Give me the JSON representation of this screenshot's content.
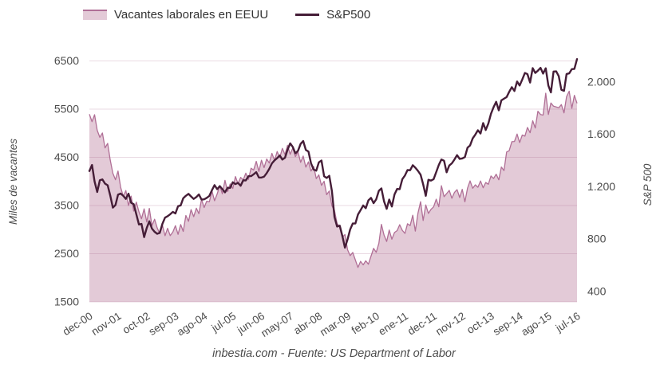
{
  "legend": [
    {
      "label": "Vacantes laborales en EEUU",
      "type": "area"
    },
    {
      "label": "S&P500",
      "type": "line"
    }
  ],
  "left_axis": {
    "title": "Miles de vacantes",
    "tick_values": [
      6500,
      5500,
      4500,
      3500,
      2500,
      1500
    ],
    "min": 1500,
    "max": 6500
  },
  "right_axis": {
    "title": "S&P 500",
    "ticks": [
      "2.000",
      "1.600",
      "1.200",
      "800",
      "400"
    ],
    "tick_values": [
      2000,
      1600,
      1200,
      800,
      400
    ]
  },
  "x_axis": {
    "tick_labels": [
      "dec-00",
      "nov-01",
      "oct-02",
      "sep-03",
      "ago-04",
      "jul-05",
      "jun-06",
      "may-07",
      "abr-08",
      "mar-09",
      "feb-10",
      "ene-11",
      "dec-11",
      "nov-12",
      "oct-13",
      "sep-14",
      "ago-15",
      "jul-16"
    ],
    "tick_indices": [
      0,
      11,
      22,
      33,
      44,
      55,
      66,
      77,
      88,
      99,
      110,
      121,
      132,
      143,
      154,
      165,
      176,
      187
    ]
  },
  "footer": "inbestia.com - Fuente: US Department of Labor",
  "colors": {
    "area_fill": "#e3cad7",
    "area_stroke": "#b06f96",
    "line": "#451d37",
    "gridline": "rgba(166,100,140,0.24)",
    "tick_text": "#4c4c4c",
    "legend_text": "#333333",
    "footer_text": "#4c4c4c"
  },
  "chart_data": {
    "type": "area+line",
    "title": "",
    "xlabel": "",
    "ylabel_left": "Miles de vacantes",
    "ylabel_right": "S&P 500",
    "ylim_left": [
      1500,
      6500
    ],
    "ylim_right": [
      400,
      2000
    ],
    "grid": "horizontal",
    "legend_position": "top",
    "frequency": "monthly",
    "categories": [
      "dec-00",
      "ene-01",
      "feb-01",
      "mar-01",
      "abr-01",
      "may-01",
      "jun-01",
      "jul-01",
      "ago-01",
      "sep-01",
      "oct-01",
      "nov-01",
      "dec-01",
      "ene-02",
      "feb-02",
      "mar-02",
      "abr-02",
      "may-02",
      "jun-02",
      "jul-02",
      "ago-02",
      "sep-02",
      "oct-02",
      "nov-02",
      "dec-02",
      "ene-03",
      "feb-03",
      "mar-03",
      "abr-03",
      "may-03",
      "jun-03",
      "jul-03",
      "ago-03",
      "sep-03",
      "oct-03",
      "nov-03",
      "dec-03",
      "ene-04",
      "feb-04",
      "mar-04",
      "abr-04",
      "may-04",
      "jun-04",
      "jul-04",
      "ago-04",
      "sep-04",
      "oct-04",
      "nov-04",
      "dec-04",
      "ene-05",
      "feb-05",
      "mar-05",
      "abr-05",
      "may-05",
      "jun-05",
      "jul-05",
      "ago-05",
      "sep-05",
      "oct-05",
      "nov-05",
      "dec-05",
      "ene-06",
      "feb-06",
      "mar-06",
      "abr-06",
      "may-06",
      "jun-06",
      "jul-06",
      "ago-06",
      "sep-06",
      "oct-06",
      "nov-06",
      "dec-06",
      "ene-07",
      "feb-07",
      "mar-07",
      "abr-07",
      "may-07",
      "jun-07",
      "jul-07",
      "ago-07",
      "sep-07",
      "oct-07",
      "nov-07",
      "dec-07",
      "ene-08",
      "feb-08",
      "mar-08",
      "abr-08",
      "may-08",
      "jun-08",
      "jul-08",
      "ago-08",
      "sep-08",
      "oct-08",
      "nov-08",
      "dec-08",
      "ene-09",
      "feb-09",
      "mar-09",
      "abr-09",
      "may-09",
      "jun-09",
      "jul-09",
      "ago-09",
      "sep-09",
      "oct-09",
      "nov-09",
      "dec-09",
      "ene-10",
      "feb-10",
      "mar-10",
      "abr-10",
      "may-10",
      "jun-10",
      "jul-10",
      "ago-10",
      "sep-10",
      "oct-10",
      "nov-10",
      "dec-10",
      "ene-11",
      "feb-11",
      "mar-11",
      "abr-11",
      "may-11",
      "jun-11",
      "jul-11",
      "ago-11",
      "sep-11",
      "oct-11",
      "nov-11",
      "dec-11",
      "ene-12",
      "feb-12",
      "mar-12",
      "abr-12",
      "may-12",
      "jun-12",
      "jul-12",
      "ago-12",
      "sep-12",
      "oct-12",
      "nov-12",
      "dec-12",
      "ene-13",
      "feb-13",
      "mar-13",
      "abr-13",
      "may-13",
      "jun-13",
      "jul-13",
      "ago-13",
      "sep-13",
      "oct-13",
      "nov-13",
      "dec-13",
      "ene-14",
      "feb-14",
      "mar-14",
      "abr-14",
      "may-14",
      "jun-14",
      "jul-14",
      "ago-14",
      "sep-14",
      "oct-14",
      "nov-14",
      "dec-14",
      "ene-15",
      "feb-15",
      "mar-15",
      "abr-15",
      "may-15",
      "jun-15",
      "jul-15",
      "ago-15",
      "sep-15",
      "oct-15",
      "nov-15",
      "dec-15",
      "ene-16",
      "feb-16",
      "mar-16",
      "abr-16",
      "may-16",
      "jun-16",
      "jul-16"
    ],
    "series": [
      {
        "name": "Vacantes laborales en EEUU",
        "axis": "left",
        "style": "area",
        "values": [
          5395,
          5240,
          5385,
          5060,
          4915,
          5005,
          4695,
          4790,
          4445,
          4170,
          4035,
          4215,
          3875,
          3690,
          3810,
          3500,
          3695,
          3385,
          3570,
          3370,
          3225,
          3430,
          3160,
          3440,
          3080,
          3215,
          3034,
          2917,
          3091,
          2874,
          3028,
          2876,
          2952,
          3081,
          2902,
          3105,
          2963,
          3294,
          3172,
          3415,
          3268,
          3444,
          3331,
          3629,
          3459,
          3589,
          3576,
          3800,
          3599,
          3739,
          3914,
          3743,
          4022,
          3789,
          3948,
          3854,
          4101,
          3952,
          4084,
          4033,
          4171,
          4042,
          4274,
          4236,
          4416,
          4208,
          4441,
          4286,
          4465,
          4381,
          4582,
          4438,
          4621,
          4493,
          4685,
          4556,
          4749,
          4563,
          4695,
          4515,
          4612,
          4396,
          4527,
          4296,
          4405,
          4215,
          4311,
          4058,
          4137,
          3918,
          4003,
          3725,
          3801,
          3493,
          3399,
          3123,
          3050,
          2841,
          2898,
          2583,
          2461,
          2526,
          2367,
          2215,
          2341,
          2268,
          2353,
          2281,
          2451,
          2611,
          2529,
          2713,
          3108,
          2886,
          2755,
          2991,
          2801,
          2939,
          2979,
          3102,
          2984,
          2921,
          3122,
          3083,
          3299,
          2970,
          3342,
          3579,
          3189,
          3511,
          3336,
          3419,
          3472,
          3631,
          3474,
          3911,
          3684,
          3747,
          3814,
          3650,
          3771,
          3829,
          3666,
          3836,
          3576,
          3861,
          4011,
          3858,
          3930,
          3878,
          4009,
          3868,
          3977,
          3941,
          4114,
          4061,
          4149,
          4034,
          4299,
          4225,
          4611,
          4637,
          4824,
          4829,
          4983,
          4805,
          4962,
          4939,
          5120,
          5011,
          5258,
          5109,
          5457,
          5390,
          5376,
          5830,
          5390,
          5628,
          5561,
          5545,
          5528,
          5594,
          5422,
          5760,
          5872,
          5517,
          5786,
          5621
        ]
      },
      {
        "name": "S&P500",
        "axis": "right",
        "style": "line",
        "values": [
          1320,
          1366,
          1240,
          1160,
          1249,
          1256,
          1224,
          1211,
          1134,
          1041,
          1060,
          1139,
          1148,
          1130,
          1107,
          1147,
          1077,
          1067,
          990,
          912,
          916,
          815,
          886,
          936,
          880,
          856,
          841,
          848,
          917,
          964,
          975,
          990,
          1008,
          996,
          1051,
          1058,
          1112,
          1131,
          1145,
          1126,
          1107,
          1121,
          1141,
          1102,
          1104,
          1115,
          1130,
          1174,
          1212,
          1181,
          1204,
          1181,
          1157,
          1192,
          1191,
          1234,
          1220,
          1229,
          1207,
          1249,
          1248,
          1280,
          1281,
          1295,
          1311,
          1270,
          1270,
          1277,
          1304,
          1336,
          1378,
          1401,
          1418,
          1438,
          1407,
          1421,
          1482,
          1531,
          1503,
          1455,
          1474,
          1527,
          1549,
          1481,
          1468,
          1379,
          1331,
          1323,
          1386,
          1400,
          1280,
          1267,
          1283,
          1166,
          969,
          896,
          903,
          826,
          735,
          798,
          873,
          919,
          919,
          987,
          1021,
          1057,
          1036,
          1096,
          1115,
          1074,
          1104,
          1169,
          1187,
          1089,
          1031,
          1102,
          1049,
          1141,
          1183,
          1181,
          1258,
          1286,
          1327,
          1326,
          1364,
          1345,
          1321,
          1292,
          1219,
          1131,
          1253,
          1247,
          1258,
          1312,
          1366,
          1408,
          1398,
          1310,
          1362,
          1379,
          1407,
          1441,
          1412,
          1416,
          1426,
          1498,
          1515,
          1569,
          1598,
          1631,
          1606,
          1686,
          1633,
          1682,
          1757,
          1806,
          1848,
          1783,
          1859,
          1872,
          1884,
          1924,
          1960,
          1931,
          2003,
          1972,
          2018,
          2068,
          2059,
          1995,
          2105,
          2068,
          2086,
          2107,
          2063,
          2104,
          1972,
          1920,
          2079,
          2080,
          2044,
          1940,
          1932,
          2060,
          2065,
          2097,
          2099,
          2174
        ]
      }
    ]
  }
}
